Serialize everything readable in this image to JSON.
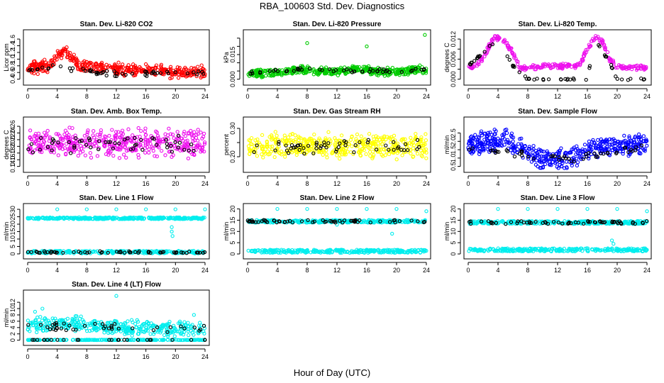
{
  "figure": {
    "title": "RBA_100603  Std. Dev. Diagnostics",
    "xlabel": "Hour of Day (UTC)"
  },
  "chart_data": [
    {
      "id": "co2",
      "type": "scatter",
      "title": "Stan. Dev. Li-820 CO2",
      "ylabel": "Licor ppm",
      "color": "#ff0000",
      "xlim": [
        0,
        24
      ],
      "ylim": [
        0.35,
        1.75
      ],
      "xticks": [
        0,
        4,
        8,
        12,
        16,
        20,
        24
      ],
      "yticks": [
        0.4,
        0.6,
        0.8,
        1.0,
        1.2,
        1.4,
        1.6
      ],
      "yticklabels": [
        "0.4",
        "0.6",
        "0.8",
        "1.0",
        "1.2",
        "1.4",
        "1.6"
      ],
      "profile": [
        [
          0,
          0.75
        ],
        [
          3,
          0.8
        ],
        [
          4,
          1.15
        ],
        [
          5,
          1.25
        ],
        [
          7,
          0.8
        ],
        [
          12,
          0.7
        ],
        [
          16,
          0.65
        ],
        [
          20,
          0.6
        ],
        [
          24,
          0.6
        ]
      ],
      "spread": 0.28,
      "n": 420,
      "seed": 11,
      "overlay_profile": [
        [
          0,
          0.6
        ],
        [
          4,
          0.8
        ],
        [
          6,
          0.7
        ],
        [
          12,
          0.55
        ],
        [
          24,
          0.6
        ]
      ],
      "overlay_spread": 0.15,
      "overlay_n": 55
    },
    {
      "id": "pressure",
      "type": "scatter",
      "title": "Stan. Dev. Li-820 Pressure",
      "ylabel": "kPa",
      "color": "#00cc00",
      "xlim": [
        0,
        24
      ],
      "ylim": [
        -0.001,
        0.0275
      ],
      "xticks": [
        0,
        4,
        8,
        12,
        16,
        20,
        24
      ],
      "yticks": [
        0.0,
        0.005,
        0.01,
        0.015,
        0.02,
        0.025
      ],
      "yticklabels": [
        "0.000",
        "",
        "",
        "0.015",
        "",
        ""
      ],
      "profile": [
        [
          0,
          0.0035
        ],
        [
          4,
          0.004
        ],
        [
          7,
          0.006
        ],
        [
          10,
          0.005
        ],
        [
          12,
          0.0045
        ],
        [
          15,
          0.0065
        ],
        [
          18,
          0.0045
        ],
        [
          22,
          0.0055
        ],
        [
          24,
          0.006
        ]
      ],
      "spread": 0.0035,
      "n": 450,
      "seed": 23,
      "outliers": [
        [
          8,
          0.022
        ],
        [
          16,
          0.02
        ],
        [
          23.8,
          0.027
        ]
      ],
      "overlay_profile": [
        [
          0,
          0.004
        ],
        [
          8,
          0.0065
        ],
        [
          12,
          0.005
        ],
        [
          24,
          0.0055
        ]
      ],
      "overlay_spread": 0.002,
      "overlay_n": 50
    },
    {
      "id": "temp",
      "type": "scatter",
      "title": "Stan. Dev. Li-820 Temp.",
      "ylabel": "degrees C",
      "color": "#ee11ee",
      "xlim": [
        0,
        24
      ],
      "ylim": [
        -0.0005,
        0.0135
      ],
      "xticks": [
        0,
        4,
        8,
        12,
        16,
        20,
        24
      ],
      "yticks": [
        0.0,
        0.003,
        0.006,
        0.009,
        0.012
      ],
      "yticklabels": [
        "0.000",
        "",
        "0.006",
        "",
        "0.012"
      ],
      "profile": [
        [
          0,
          0.0035
        ],
        [
          1,
          0.004
        ],
        [
          2,
          0.0065
        ],
        [
          3.5,
          0.0125
        ],
        [
          4.5,
          0.0125
        ],
        [
          6,
          0.008
        ],
        [
          7,
          0.003
        ],
        [
          8,
          0.0035
        ],
        [
          14,
          0.004
        ],
        [
          15,
          0.0045
        ],
        [
          16,
          0.009
        ],
        [
          17,
          0.0125
        ],
        [
          18,
          0.0115
        ],
        [
          19,
          0.006
        ],
        [
          20,
          0.0035
        ],
        [
          24,
          0.0035
        ]
      ],
      "spread": 0.0012,
      "n": 300,
      "seed": 31,
      "overlay_profile": [
        [
          0,
          0.004
        ],
        [
          3,
          0.01
        ],
        [
          4,
          0.012
        ],
        [
          6,
          0.004
        ],
        [
          8,
          0.0
        ],
        [
          16,
          0.0
        ],
        [
          17,
          0.012
        ],
        [
          19,
          0.005
        ],
        [
          20,
          0.0
        ],
        [
          24,
          0.0
        ]
      ],
      "overlay_spread": 0.0005,
      "overlay_n": 60
    },
    {
      "id": "ambtemp",
      "type": "scatter",
      "title": "Stan. Dev. Amb. Box Temp.",
      "ylabel": "degrees C",
      "color": "#ee11ee",
      "xlim": [
        0,
        24
      ],
      "ylim": [
        0.135,
        0.275
      ],
      "xticks": [
        0,
        4,
        8,
        12,
        16,
        20,
        24
      ],
      "yticks": [
        0.14,
        0.16,
        0.18,
        0.2,
        0.22,
        0.24,
        0.26
      ],
      "yticklabels": [
        "0.14",
        "0.16",
        "0.18",
        "0.20",
        "0.22",
        "0.24",
        "0.26"
      ],
      "profile": [
        [
          0,
          0.21
        ],
        [
          24,
          0.21
        ]
      ],
      "spread": 0.06,
      "n": 430,
      "seed": 41,
      "overlay_profile": [
        [
          0,
          0.2
        ],
        [
          24,
          0.21
        ]
      ],
      "overlay_spread": 0.05,
      "overlay_n": 55
    },
    {
      "id": "rh",
      "type": "scatter",
      "title": "Stan. Dev. Gas Stream RH",
      "ylabel": "percent",
      "color": "#ffff00",
      "xlim": [
        0,
        24
      ],
      "ylim": [
        0.16,
        0.325
      ],
      "xticks": [
        0,
        4,
        8,
        12,
        16,
        20,
        24
      ],
      "yticks": [
        0.2,
        0.25,
        0.3
      ],
      "yticklabels": [
        "0.20",
        "",
        "0.30"
      ],
      "profile": [
        [
          0,
          0.24
        ],
        [
          24,
          0.24
        ]
      ],
      "spread": 0.065,
      "n": 450,
      "seed": 53,
      "overlay_profile": [
        [
          0,
          0.23
        ],
        [
          24,
          0.24
        ]
      ],
      "overlay_spread": 0.045,
      "overlay_n": 55
    },
    {
      "id": "sampleflow",
      "type": "scatter",
      "title": "Stan. Dev. Sample Flow",
      "ylabel": "ml/min",
      "color": "#0000ff",
      "xlim": [
        0,
        24
      ],
      "ylim": [
        0.4,
        3.2
      ],
      "xticks": [
        0,
        4,
        8,
        12,
        16,
        20,
        24
      ],
      "yticks": [
        0.5,
        1.0,
        1.5,
        2.0,
        2.5
      ],
      "yticklabels": [
        "0.5",
        "1.0",
        "1.5",
        "2.0",
        "2.5"
      ],
      "profile": [
        [
          0,
          1.8
        ],
        [
          3,
          2.0
        ],
        [
          5,
          2.2
        ],
        [
          7,
          1.6
        ],
        [
          9,
          1.1
        ],
        [
          11,
          0.9
        ],
        [
          13,
          0.9
        ],
        [
          15,
          1.3
        ],
        [
          17,
          1.7
        ],
        [
          20,
          1.8
        ],
        [
          24,
          1.8
        ]
      ],
      "spread": 0.9,
      "n": 480,
      "seed": 67,
      "overlay_profile": [
        [
          0,
          1.6
        ],
        [
          10,
          1.1
        ],
        [
          13,
          0.9
        ],
        [
          24,
          1.7
        ]
      ],
      "overlay_spread": 0.4,
      "overlay_n": 50
    },
    {
      "id": "line1",
      "type": "scatter",
      "title": "Stan. Dev. Line 1 Flow",
      "ylabel": "ml/min",
      "color": "#00eeee",
      "xlim": [
        0,
        24
      ],
      "ylim": [
        -0.5,
        31
      ],
      "xticks": [
        0,
        4,
        8,
        12,
        16,
        20,
        24
      ],
      "yticks": [
        0,
        5,
        10,
        15,
        20,
        25,
        30
      ],
      "yticklabels": [
        "0",
        "5",
        "10",
        "15",
        "20",
        "25",
        "30"
      ],
      "bands": [
        {
          "center": 24,
          "spread": 1.2,
          "n": 320
        },
        {
          "center": 1.2,
          "spread": 1.8,
          "n": 260
        }
      ],
      "seed": 71,
      "outliers": [
        [
          4,
          30
        ],
        [
          8,
          30
        ],
        [
          12,
          30
        ],
        [
          16,
          30
        ],
        [
          20,
          30
        ],
        [
          24,
          30
        ],
        [
          19.5,
          18
        ],
        [
          19.5,
          15
        ],
        [
          19.6,
          12
        ]
      ],
      "overlay_profile": [
        [
          0,
          1.2
        ],
        [
          24,
          1.2
        ]
      ],
      "overlay_spread": 1.2,
      "overlay_n": 60
    },
    {
      "id": "line2",
      "type": "scatter",
      "title": "Stan. Dev. Line 2 Flow",
      "ylabel": "ml/min",
      "color": "#00eeee",
      "xlim": [
        0,
        24
      ],
      "ylim": [
        -0.3,
        20.5
      ],
      "xticks": [
        0,
        4,
        8,
        12,
        16,
        20,
        24
      ],
      "yticks": [
        0,
        5,
        10,
        15,
        20
      ],
      "yticklabels": [
        "0",
        "5",
        "10",
        "15",
        "20"
      ],
      "bands": [
        {
          "center": 14.5,
          "spread": 1.2,
          "n": 300
        },
        {
          "center": 1.2,
          "spread": 1.4,
          "n": 280
        }
      ],
      "seed": 83,
      "outliers": [
        [
          4,
          20
        ],
        [
          8,
          20
        ],
        [
          12,
          20
        ],
        [
          16,
          20
        ],
        [
          20,
          20
        ],
        [
          24,
          19
        ],
        [
          19.4,
          9
        ],
        [
          12,
          13
        ]
      ],
      "overlay_profile": [
        [
          0,
          14.5
        ],
        [
          24,
          14.5
        ]
      ],
      "overlay_spread": 1.3,
      "overlay_n": 60
    },
    {
      "id": "line3",
      "type": "scatter",
      "title": "Stan. Dev. Line 3 Flow",
      "ylabel": "ml/min",
      "color": "#00eeee",
      "xlim": [
        0,
        24
      ],
      "ylim": [
        -0.3,
        20.5
      ],
      "xticks": [
        0,
        4,
        8,
        12,
        16,
        20,
        24
      ],
      "yticks": [
        0,
        5,
        10,
        15,
        20
      ],
      "yticklabels": [
        "0",
        "5",
        "10",
        "15",
        "20"
      ],
      "bands": [
        {
          "center": 14,
          "spread": 1.3,
          "n": 300
        },
        {
          "center": 1.8,
          "spread": 1.4,
          "n": 280
        }
      ],
      "seed": 97,
      "outliers": [
        [
          4,
          20
        ],
        [
          8,
          20
        ],
        [
          12,
          20
        ],
        [
          16,
          20
        ],
        [
          20,
          20
        ],
        [
          24,
          19
        ],
        [
          19.3,
          6
        ],
        [
          19.5,
          4.5
        ]
      ],
      "overlay_profile": [
        [
          0,
          14
        ],
        [
          24,
          14
        ]
      ],
      "overlay_spread": 1.3,
      "overlay_n": 60
    },
    {
      "id": "line4",
      "type": "scatter",
      "title": "Stan. Dev. Line 4 (LT) Flow",
      "ylabel": "ml/min",
      "color": "#00eeee",
      "xlim": [
        0,
        24
      ],
      "ylim": [
        -0.3,
        14.5
      ],
      "xticks": [
        0,
        4,
        8,
        12,
        16,
        20,
        24
      ],
      "yticks": [
        0,
        2,
        4,
        6,
        8,
        10,
        12
      ],
      "yticklabels": [
        "0",
        "2",
        "4",
        "6",
        "8",
        "10",
        "12"
      ],
      "profile": [
        [
          0,
          4.5
        ],
        [
          3,
          5
        ],
        [
          5,
          5.5
        ],
        [
          7,
          5
        ],
        [
          10,
          4.5
        ],
        [
          14,
          4
        ],
        [
          18,
          3.5
        ],
        [
          24,
          3.5
        ]
      ],
      "spread": 3.5,
      "n": 380,
      "seed": 101,
      "bands": [
        {
          "center": 0.1,
          "spread": 0.15,
          "n": 200
        }
      ],
      "outliers": [
        [
          12,
          14
        ],
        [
          2,
          10
        ],
        [
          1,
          9
        ],
        [
          22.5,
          8
        ]
      ],
      "overlay_profile": [
        [
          0,
          4.5
        ],
        [
          24,
          3.5
        ]
      ],
      "overlay_spread": 2.5,
      "overlay_n": 40,
      "overlay_zero_n": 25
    }
  ]
}
